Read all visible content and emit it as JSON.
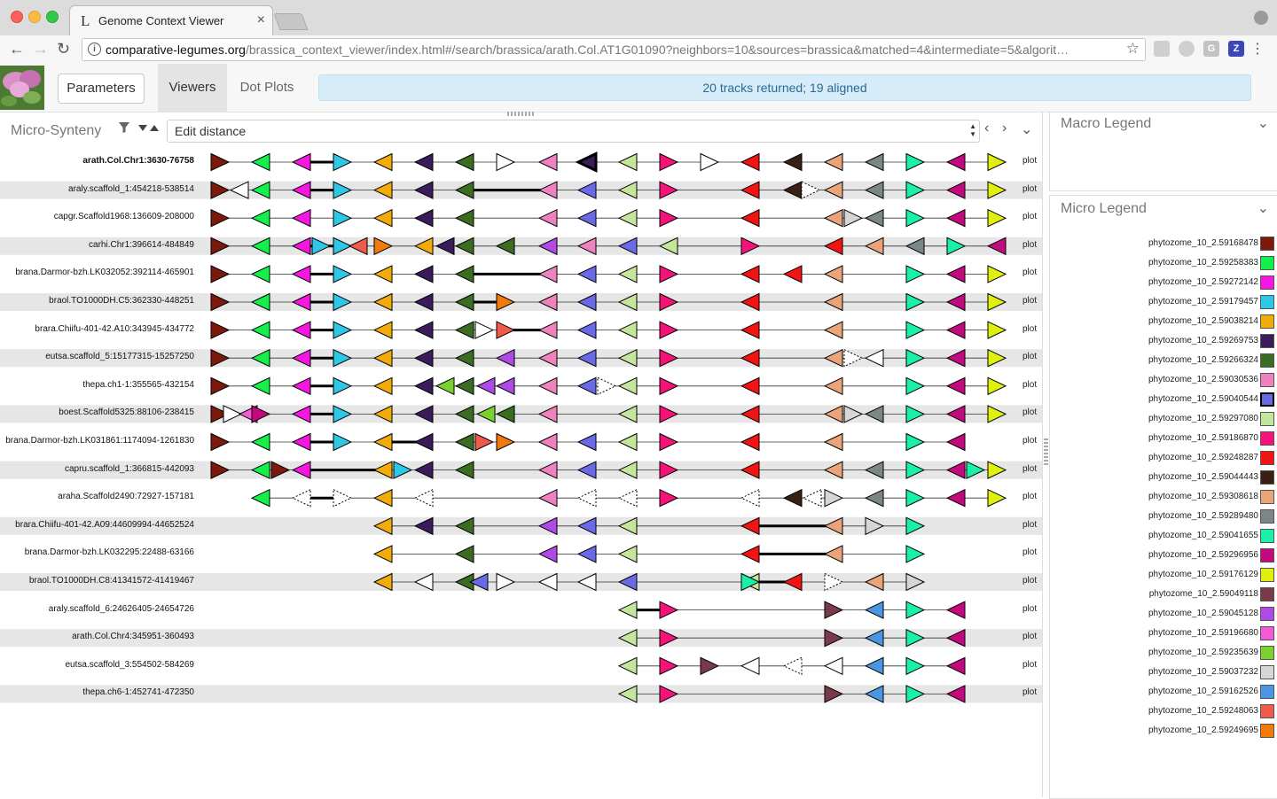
{
  "browser": {
    "tab_title": "Genome Context Viewer",
    "tab_favicon": "L",
    "url_host": "comparative-legumes.org",
    "url_path": "/brassica_context_viewer/index.html#/search/brassica/arath.Col.AT1G01090?neighbors=10&sources=brassica&matched=4&intermediate=5&algorit…"
  },
  "header": {
    "parameters_label": "Parameters",
    "viewers_label": "Viewers",
    "dot_plots_label": "Dot Plots",
    "alert": "20 tracks returned; 19 aligned"
  },
  "micro": {
    "title": "Micro-Synteny",
    "ordering": "Edit distance",
    "plot_label": "plot"
  },
  "macro_legend": {
    "title": "Macro Legend"
  },
  "micro_legend": {
    "title": "Micro Legend",
    "items": [
      {
        "label": "phytozome_10_2.59168478",
        "color": "#7b1a0b"
      },
      {
        "label": "phytozome_10_2.59258383",
        "color": "#14f04a"
      },
      {
        "label": "phytozome_10_2.59272142",
        "color": "#f516e0"
      },
      {
        "label": "phytozome_10_2.59179457",
        "color": "#2ec7e6"
      },
      {
        "label": "phytozome_10_2.59038214",
        "color": "#f2ac0a"
      },
      {
        "label": "phytozome_10_2.59269753",
        "color": "#3b1c5a"
      },
      {
        "label": "phytozome_10_2.59266324",
        "color": "#3a6c22"
      },
      {
        "label": "phytozome_10_2.59030536",
        "color": "#ee82be"
      },
      {
        "label": "phytozome_10_2.59040544",
        "color": "#6a6ae6",
        "selected": true
      },
      {
        "label": "phytozome_10_2.59297080",
        "color": "#c3e69a"
      },
      {
        "label": "phytozome_10_2.59186870",
        "color": "#f5137a"
      },
      {
        "label": "phytozome_10_2.59248287",
        "color": "#f21313"
      },
      {
        "label": "phytozome_10_2.59044443",
        "color": "#3a2012"
      },
      {
        "label": "phytozome_10_2.59308618",
        "color": "#e9a47a"
      },
      {
        "label": "phytozome_10_2.59289480",
        "color": "#7b8686"
      },
      {
        "label": "phytozome_10_2.59041655",
        "color": "#1af0a6"
      },
      {
        "label": "phytozome_10_2.59296956",
        "color": "#c3097e"
      },
      {
        "label": "phytozome_10_2.59176129",
        "color": "#dff00e"
      },
      {
        "label": "phytozome_10_2.59049118",
        "color": "#7a3a4a"
      },
      {
        "label": "phytozome_10_2.59045128",
        "color": "#b04ae6"
      },
      {
        "label": "phytozome_10_2.59196680",
        "color": "#f25ad6"
      },
      {
        "label": "phytozome_10_2.59235639",
        "color": "#7ad22e"
      },
      {
        "label": "phytozome_10_2.59037232",
        "color": "#d6d6d6"
      },
      {
        "label": "phytozome_10_2.59162526",
        "color": "#4a96e0"
      },
      {
        "label": "phytozome_10_2.59248063",
        "color": "#f05a4a"
      },
      {
        "label": "phytozome_10_2.59249695",
        "color": "#f27a0a"
      }
    ]
  },
  "tracks": [
    {
      "label": "arath.Col.Chr1:3630-76758",
      "query": true,
      "genes": [
        [
          "R",
          0
        ],
        [
          "L",
          1
        ],
        [
          "L",
          2
        ],
        [
          "R",
          3
        ],
        [
          "L",
          4
        ],
        [
          "L",
          5
        ],
        [
          "L",
          6
        ],
        [
          "R",
          "w"
        ],
        [
          "L",
          7
        ],
        [
          "L",
          5,
          "sel"
        ],
        [
          "L",
          9
        ],
        [
          "R",
          10
        ],
        [
          "R",
          "w"
        ],
        [
          "L",
          11
        ],
        [
          "L",
          12
        ],
        [
          "L",
          13
        ],
        [
          "L",
          14
        ],
        [
          "R",
          15
        ],
        [
          "L",
          16
        ],
        [
          "R",
          17
        ]
      ]
    },
    {
      "label": "araly.scaffold_1:454218-538514",
      "genes": [
        [
          "R",
          0
        ],
        [
          "L",
          "w"
        ],
        [
          "L",
          1
        ],
        [
          "L",
          2
        ],
        [
          "R",
          3
        ],
        [
          "L",
          4
        ],
        [
          "L",
          5
        ],
        [
          "L",
          6
        ],
        [
          "L",
          7
        ],
        [
          "L",
          8
        ],
        [
          "L",
          9
        ],
        [
          "R",
          10
        ],
        [
          "L",
          11
        ],
        [
          "L",
          12
        ],
        [
          "R",
          "d"
        ],
        [
          "L",
          13
        ],
        [
          "L",
          14
        ],
        [
          "R",
          15
        ],
        [
          "L",
          16
        ],
        [
          "R",
          17
        ]
      ]
    },
    {
      "label": "capgr.Scaffold1968:136609-208000",
      "genes": [
        [
          "R",
          0
        ],
        [
          "L",
          1
        ],
        [
          "L",
          2
        ],
        [
          "R",
          3
        ],
        [
          "L",
          4
        ],
        [
          "L",
          5
        ],
        [
          "L",
          6
        ],
        [
          "L",
          7
        ],
        [
          "L",
          8
        ],
        [
          "L",
          9
        ],
        [
          "R",
          10
        ],
        [
          "L",
          11
        ],
        [
          "L",
          13
        ],
        [
          "R",
          22
        ],
        [
          "L",
          14
        ],
        [
          "R",
          15
        ],
        [
          "L",
          16
        ],
        [
          "R",
          17
        ]
      ]
    },
    {
      "label": "carhi.Chr1:396614-484849",
      "genes": [
        [
          "R",
          0
        ],
        [
          "L",
          1
        ],
        [
          "L",
          2
        ],
        [
          "R",
          3
        ],
        [
          "R",
          3
        ],
        [
          "L",
          24
        ],
        [
          "R",
          25
        ],
        [
          "L",
          4
        ],
        [
          "L",
          5
        ],
        [
          "L",
          6
        ],
        [
          "L",
          6
        ],
        [
          "L",
          19
        ],
        [
          "L",
          7
        ],
        [
          "L",
          8
        ],
        [
          "L",
          9
        ],
        [
          "R",
          10
        ],
        [
          "L",
          11
        ],
        [
          "L",
          13
        ],
        [
          "L",
          14
        ],
        [
          "R",
          15
        ],
        [
          "L",
          16
        ],
        [
          "R",
          17
        ]
      ]
    },
    {
      "label": "brana.Darmor-bzh.LK032052:392114-465901",
      "genes": [
        [
          "R",
          0
        ],
        [
          "L",
          1
        ],
        [
          "L",
          2
        ],
        [
          "R",
          3
        ],
        [
          "L",
          4
        ],
        [
          "L",
          5
        ],
        [
          "L",
          6
        ],
        [
          "L",
          7
        ],
        [
          "L",
          8
        ],
        [
          "L",
          9
        ],
        [
          "R",
          10
        ],
        [
          "L",
          11
        ],
        [
          "L",
          11
        ],
        [
          "L",
          13
        ],
        [
          "R",
          15
        ],
        [
          "L",
          16
        ],
        [
          "R",
          17
        ]
      ]
    },
    {
      "label": "braol.TO1000DH.C5:362330-448251",
      "genes": [
        [
          "R",
          0
        ],
        [
          "L",
          1
        ],
        [
          "L",
          2
        ],
        [
          "R",
          3
        ],
        [
          "L",
          4
        ],
        [
          "L",
          5
        ],
        [
          "L",
          6
        ],
        [
          "R",
          25
        ],
        [
          "L",
          7
        ],
        [
          "L",
          8
        ],
        [
          "L",
          9
        ],
        [
          "R",
          10
        ],
        [
          "L",
          11
        ],
        [
          "L",
          13
        ],
        [
          "R",
          15
        ],
        [
          "L",
          16
        ],
        [
          "R",
          17
        ]
      ]
    },
    {
      "label": "brara.Chiifu-401-42.A10:343945-434772",
      "genes": [
        [
          "R",
          0
        ],
        [
          "L",
          1
        ],
        [
          "L",
          2
        ],
        [
          "R",
          3
        ],
        [
          "L",
          4
        ],
        [
          "L",
          5
        ],
        [
          "L",
          6
        ],
        [
          "R",
          "w"
        ],
        [
          "R",
          24
        ],
        [
          "L",
          7
        ],
        [
          "L",
          8
        ],
        [
          "L",
          9
        ],
        [
          "R",
          10
        ],
        [
          "L",
          11
        ],
        [
          "L",
          13
        ],
        [
          "R",
          15
        ],
        [
          "L",
          16
        ],
        [
          "R",
          17
        ]
      ]
    },
    {
      "label": "eutsa.scaffold_5:15177315-15257250",
      "genes": [
        [
          "R",
          0
        ],
        [
          "L",
          1
        ],
        [
          "L",
          2
        ],
        [
          "R",
          3
        ],
        [
          "L",
          4
        ],
        [
          "L",
          5
        ],
        [
          "L",
          6
        ],
        [
          "L",
          19
        ],
        [
          "L",
          7
        ],
        [
          "L",
          8
        ],
        [
          "L",
          9
        ],
        [
          "R",
          10
        ],
        [
          "L",
          11
        ],
        [
          "L",
          13
        ],
        [
          "R",
          "d"
        ],
        [
          "L",
          "w"
        ],
        [
          "R",
          15
        ],
        [
          "L",
          16
        ],
        [
          "R",
          17
        ]
      ]
    },
    {
      "label": "thepa.ch1-1:355565-432154",
      "genes": [
        [
          "R",
          0
        ],
        [
          "L",
          1
        ],
        [
          "L",
          2
        ],
        [
          "R",
          3
        ],
        [
          "L",
          4
        ],
        [
          "L",
          5
        ],
        [
          "L",
          21
        ],
        [
          "L",
          6
        ],
        [
          "L",
          19
        ],
        [
          "L",
          19
        ],
        [
          "L",
          7
        ],
        [
          "L",
          8
        ],
        [
          "R",
          "d"
        ],
        [
          "L",
          9
        ],
        [
          "R",
          10
        ],
        [
          "L",
          11
        ],
        [
          "L",
          13
        ],
        [
          "R",
          15
        ],
        [
          "L",
          16
        ],
        [
          "R",
          17
        ]
      ]
    },
    {
      "label": "boest.Scaffold5325:88106-238415",
      "genes": [
        [
          "R",
          0
        ],
        [
          "R",
          "w"
        ],
        [
          "L",
          20
        ],
        [
          "R",
          16
        ],
        [
          "L",
          2
        ],
        [
          "R",
          3
        ],
        [
          "L",
          4
        ],
        [
          "L",
          5
        ],
        [
          "L",
          6
        ],
        [
          "L",
          21
        ],
        [
          "L",
          6
        ],
        [
          "L",
          7
        ],
        [
          "L",
          9
        ],
        [
          "R",
          10
        ],
        [
          "L",
          11
        ],
        [
          "L",
          13
        ],
        [
          "R",
          22
        ],
        [
          "L",
          14
        ],
        [
          "R",
          15
        ],
        [
          "L",
          16
        ],
        [
          "R",
          17
        ]
      ]
    },
    {
      "label": "brana.Darmor-bzh.LK031861:1174094-1261830",
      "genes": [
        [
          "R",
          0
        ],
        [
          "L",
          1
        ],
        [
          "L",
          2
        ],
        [
          "R",
          3
        ],
        [
          "L",
          4
        ],
        [
          "L",
          5
        ],
        [
          "L",
          6
        ],
        [
          "R",
          24
        ],
        [
          "R",
          25
        ],
        [
          "L",
          7
        ],
        [
          "L",
          8
        ],
        [
          "L",
          9
        ],
        [
          "R",
          10
        ],
        [
          "L",
          11
        ],
        [
          "L",
          13
        ],
        [
          "R",
          15
        ],
        [
          "L",
          16
        ]
      ]
    },
    {
      "label": "capru.scaffold_1:366815-442093",
      "genes": [
        [
          "R",
          0
        ],
        [
          "L",
          1
        ],
        [
          "R",
          0
        ],
        [
          "L",
          2
        ],
        [
          "L",
          4
        ],
        [
          "R",
          3
        ],
        [
          "L",
          5
        ],
        [
          "L",
          6
        ],
        [
          "L",
          7
        ],
        [
          "L",
          8
        ],
        [
          "L",
          9
        ],
        [
          "R",
          10
        ],
        [
          "L",
          11
        ],
        [
          "L",
          13
        ],
        [
          "L",
          14
        ],
        [
          "R",
          15
        ],
        [
          "L",
          16
        ],
        [
          "R",
          15
        ],
        [
          "R",
          17
        ]
      ]
    },
    {
      "label": "araha.Scaffold2490:72927-157181",
      "genes": [
        [
          "L",
          1
        ],
        [
          "L",
          "d"
        ],
        [
          "R",
          "d"
        ],
        [
          "L",
          4
        ],
        [
          "L",
          "d"
        ],
        [
          "L",
          7
        ],
        [
          "L",
          "d"
        ],
        [
          "L",
          "d"
        ],
        [
          "R",
          10
        ],
        [
          "L",
          "d"
        ],
        [
          "L",
          12
        ],
        [
          "L",
          "d"
        ],
        [
          "R",
          22
        ],
        [
          "L",
          14
        ],
        [
          "R",
          15
        ],
        [
          "L",
          16
        ],
        [
          "R",
          17
        ]
      ]
    },
    {
      "label": "brara.Chiifu-401-42.A09:44609994-44652524",
      "genes": [
        [
          "L",
          4
        ],
        [
          "L",
          5
        ],
        [
          "L",
          6
        ],
        [
          "L",
          19
        ],
        [
          "L",
          8
        ],
        [
          "L",
          9
        ],
        [
          "L",
          11
        ],
        [
          "L",
          13
        ],
        [
          "R",
          22
        ],
        [
          "R",
          15
        ]
      ]
    },
    {
      "label": "brana.Darmor-bzh.LK032295:22488-63166",
      "genes": [
        [
          "L",
          4
        ],
        [
          "L",
          6
        ],
        [
          "L",
          19
        ],
        [
          "L",
          8
        ],
        [
          "L",
          9
        ],
        [
          "L",
          11
        ],
        [
          "L",
          13
        ],
        [
          "R",
          15
        ]
      ]
    },
    {
      "label": "braol.TO1000DH.C8:41341572-41419467",
      "genes": [
        [
          "L",
          4
        ],
        [
          "L",
          "w"
        ],
        [
          "L",
          6
        ],
        [
          "L",
          8
        ],
        [
          "R",
          "w"
        ],
        [
          "L",
          "w"
        ],
        [
          "L",
          "w"
        ],
        [
          "L",
          8
        ],
        [
          "L",
          9
        ],
        [
          "L",
          11
        ],
        [
          "R",
          "d"
        ],
        [
          "L",
          13
        ],
        [
          "R",
          22
        ],
        [
          "R",
          15
        ]
      ]
    },
    {
      "label": "araly.scaffold_6:24626405-24654726",
      "genes": [
        [
          "L",
          9
        ],
        [
          "R",
          10
        ],
        [
          "R",
          18
        ],
        [
          "L",
          23
        ],
        [
          "R",
          15
        ],
        [
          "L",
          16
        ]
      ]
    },
    {
      "label": "arath.Col.Chr4:345951-360493",
      "genes": [
        [
          "L",
          9
        ],
        [
          "R",
          10
        ],
        [
          "R",
          18
        ],
        [
          "L",
          23
        ],
        [
          "R",
          15
        ],
        [
          "L",
          16
        ]
      ]
    },
    {
      "label": "eutsa.scaffold_3:554502-584269",
      "genes": [
        [
          "L",
          9
        ],
        [
          "R",
          10
        ],
        [
          "R",
          18
        ],
        [
          "L",
          "w"
        ],
        [
          "L",
          "d"
        ],
        [
          "L",
          "w"
        ],
        [
          "L",
          23
        ],
        [
          "R",
          15
        ],
        [
          "L",
          16
        ]
      ]
    },
    {
      "label": "thepa.ch6-1:452741-472350",
      "genes": [
        [
          "L",
          9
        ],
        [
          "R",
          10
        ],
        [
          "R",
          18
        ],
        [
          "L",
          23
        ],
        [
          "R",
          15
        ],
        [
          "L",
          16
        ]
      ]
    }
  ]
}
